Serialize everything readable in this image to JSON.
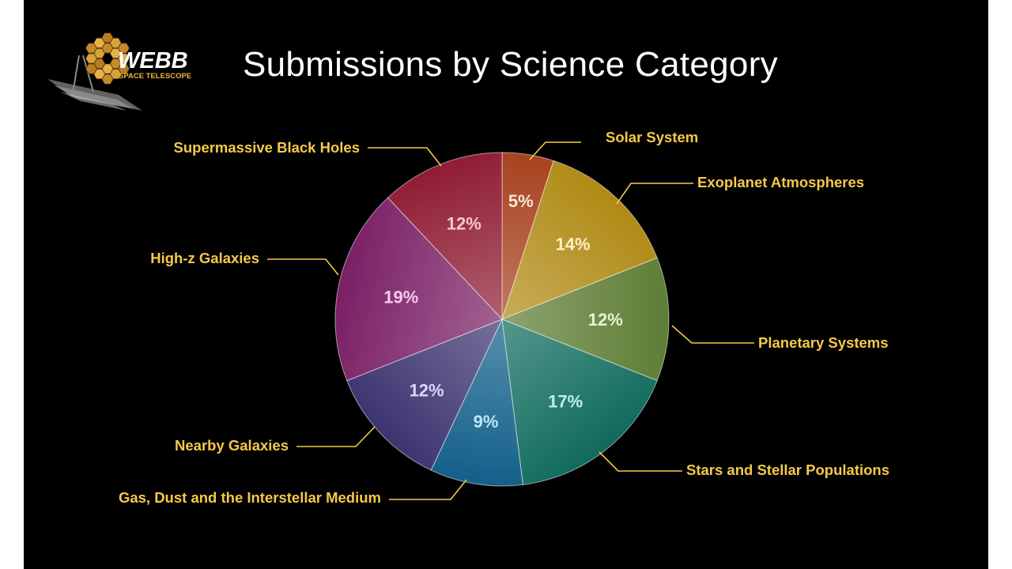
{
  "slide": {
    "title": "Submissions by Science Category",
    "logo": {
      "wordmark": "WEBB",
      "tagline": "SPACE TELESCOPE"
    }
  },
  "chart_data": {
    "type": "pie",
    "title": "Submissions by Science Category",
    "start_angle_deg": 0,
    "direction": "clockwise",
    "legend": "none",
    "slices": [
      {
        "label": "Solar System",
        "value": 5,
        "display": "5%",
        "color": "#a8421f",
        "text_color": "#f7e8d8"
      },
      {
        "label": "Exoplanet Atmospheres",
        "value": 14,
        "display": "14%",
        "color": "#b08a14",
        "text_color": "#fbf1c4"
      },
      {
        "label": "Planetary Systems",
        "value": 12,
        "display": "12%",
        "color": "#5e7d35",
        "text_color": "#e8f4cf"
      },
      {
        "label": "Stars and Stellar Populations",
        "value": 17,
        "display": "17%",
        "color": "#0f6a5c",
        "text_color": "#bff0e4"
      },
      {
        "label": "Gas, Dust and the Interstellar Medium",
        "value": 9,
        "display": "9%",
        "color": "#125f8a",
        "text_color": "#bfe6f8"
      },
      {
        "label": "Nearby Galaxies",
        "value": 12,
        "display": "12%",
        "color": "#3c3470",
        "text_color": "#dcd6f5"
      },
      {
        "label": "High-z Galaxies",
        "value": 19,
        "display": "19%",
        "color": "#7a1f65",
        "text_color": "#f8c9ec"
      },
      {
        "label": "Supermassive Black Holes",
        "value": 12,
        "display": "12%",
        "color": "#8f1c33",
        "text_color": "#f8c6cf"
      }
    ]
  },
  "colors": {
    "background": "#000000",
    "label": "#f5c94a",
    "leader_line": "#f5c94a",
    "title": "#ffffff",
    "logo_accent": "#f0b33a"
  }
}
